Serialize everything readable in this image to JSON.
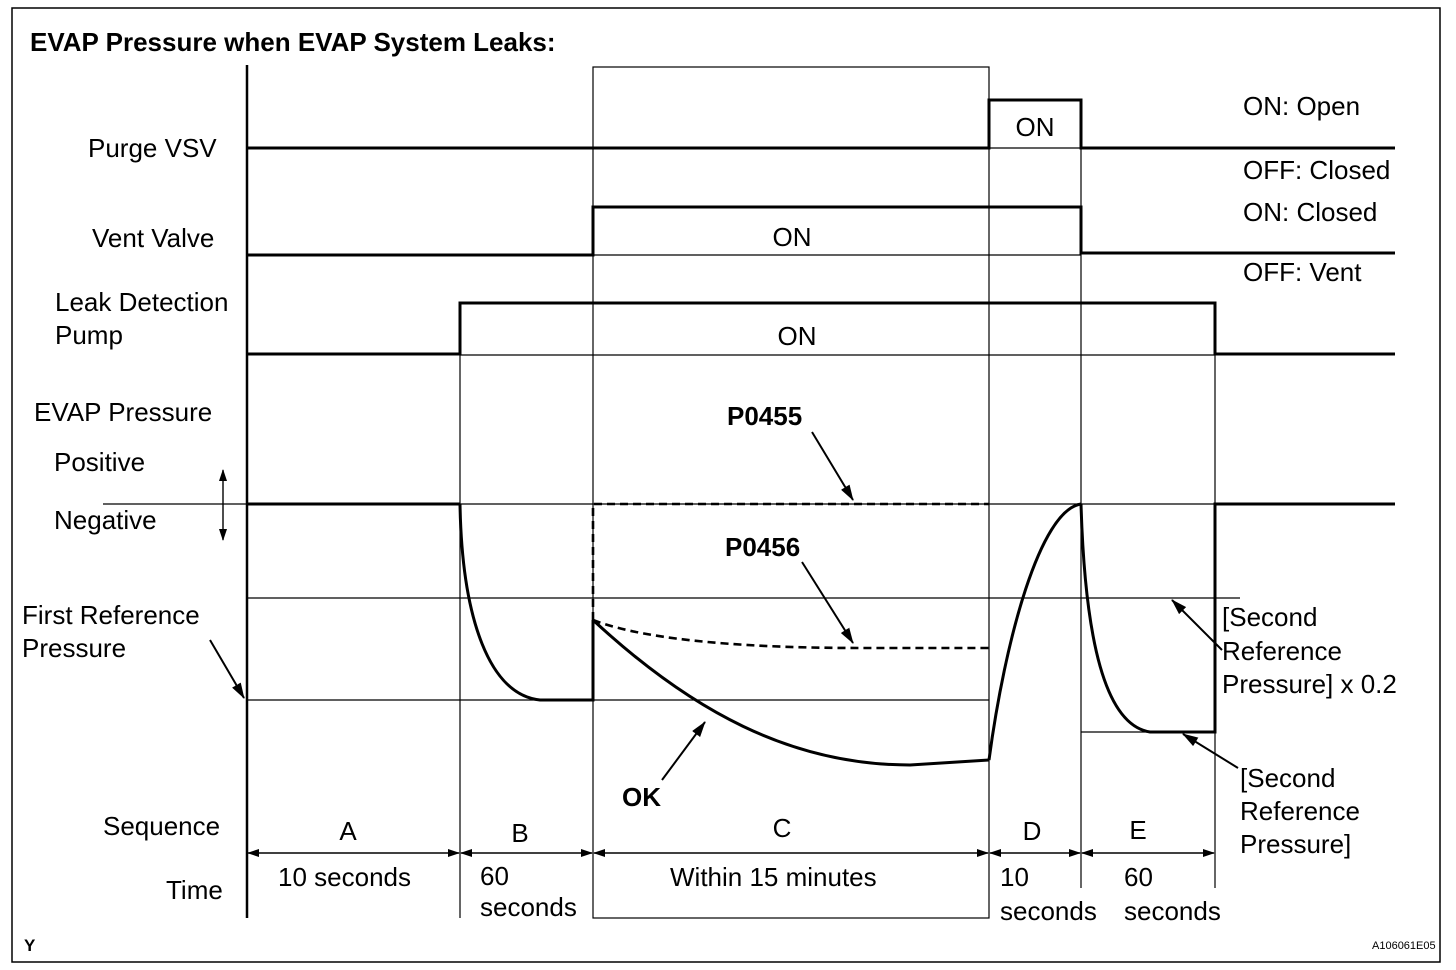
{
  "title": "EVAP Pressure when EVAP System Leaks:",
  "purge_vsv": {
    "label": "Purge VSV",
    "pulse_label": "ON",
    "state_on": "ON: Open",
    "state_off": "OFF: Closed"
  },
  "vent_valve": {
    "label": "Vent Valve",
    "pulse_label": "ON",
    "state_on": "ON: Closed",
    "state_off": "OFF: Vent"
  },
  "leak_detection_pump": {
    "label_lines": [
      "Leak Detection",
      "Pump"
    ],
    "pulse_label": "ON"
  },
  "evap_pressure": {
    "label": "EVAP Pressure",
    "positive": "Positive",
    "negative": "Negative",
    "first_reference_lines": [
      "First Reference",
      "Pressure"
    ],
    "second_reference_x02_lines": [
      "[Second",
      "Reference",
      "Pressure] x 0.2"
    ],
    "second_reference_lines": [
      "[Second",
      "Reference",
      "Pressure]"
    ],
    "upper_dashed_label": "P0455",
    "lower_dashed_label": "P0456",
    "solid_curve_label": "OK"
  },
  "sequence": {
    "label": "Sequence",
    "time_label": "Time",
    "phases": [
      {
        "name": "A",
        "time_lines": [
          "10 seconds"
        ]
      },
      {
        "name": "B",
        "time_lines": [
          "60",
          "seconds"
        ]
      },
      {
        "name": "C",
        "time_lines": [
          "Within 15 minutes"
        ]
      },
      {
        "name": "D",
        "time_lines": [
          "10",
          "seconds"
        ]
      },
      {
        "name": "E",
        "time_lines": [
          "60",
          "seconds"
        ]
      }
    ]
  },
  "footer": {
    "corner_mark": "Y",
    "figure_code": "A106061E05"
  }
}
